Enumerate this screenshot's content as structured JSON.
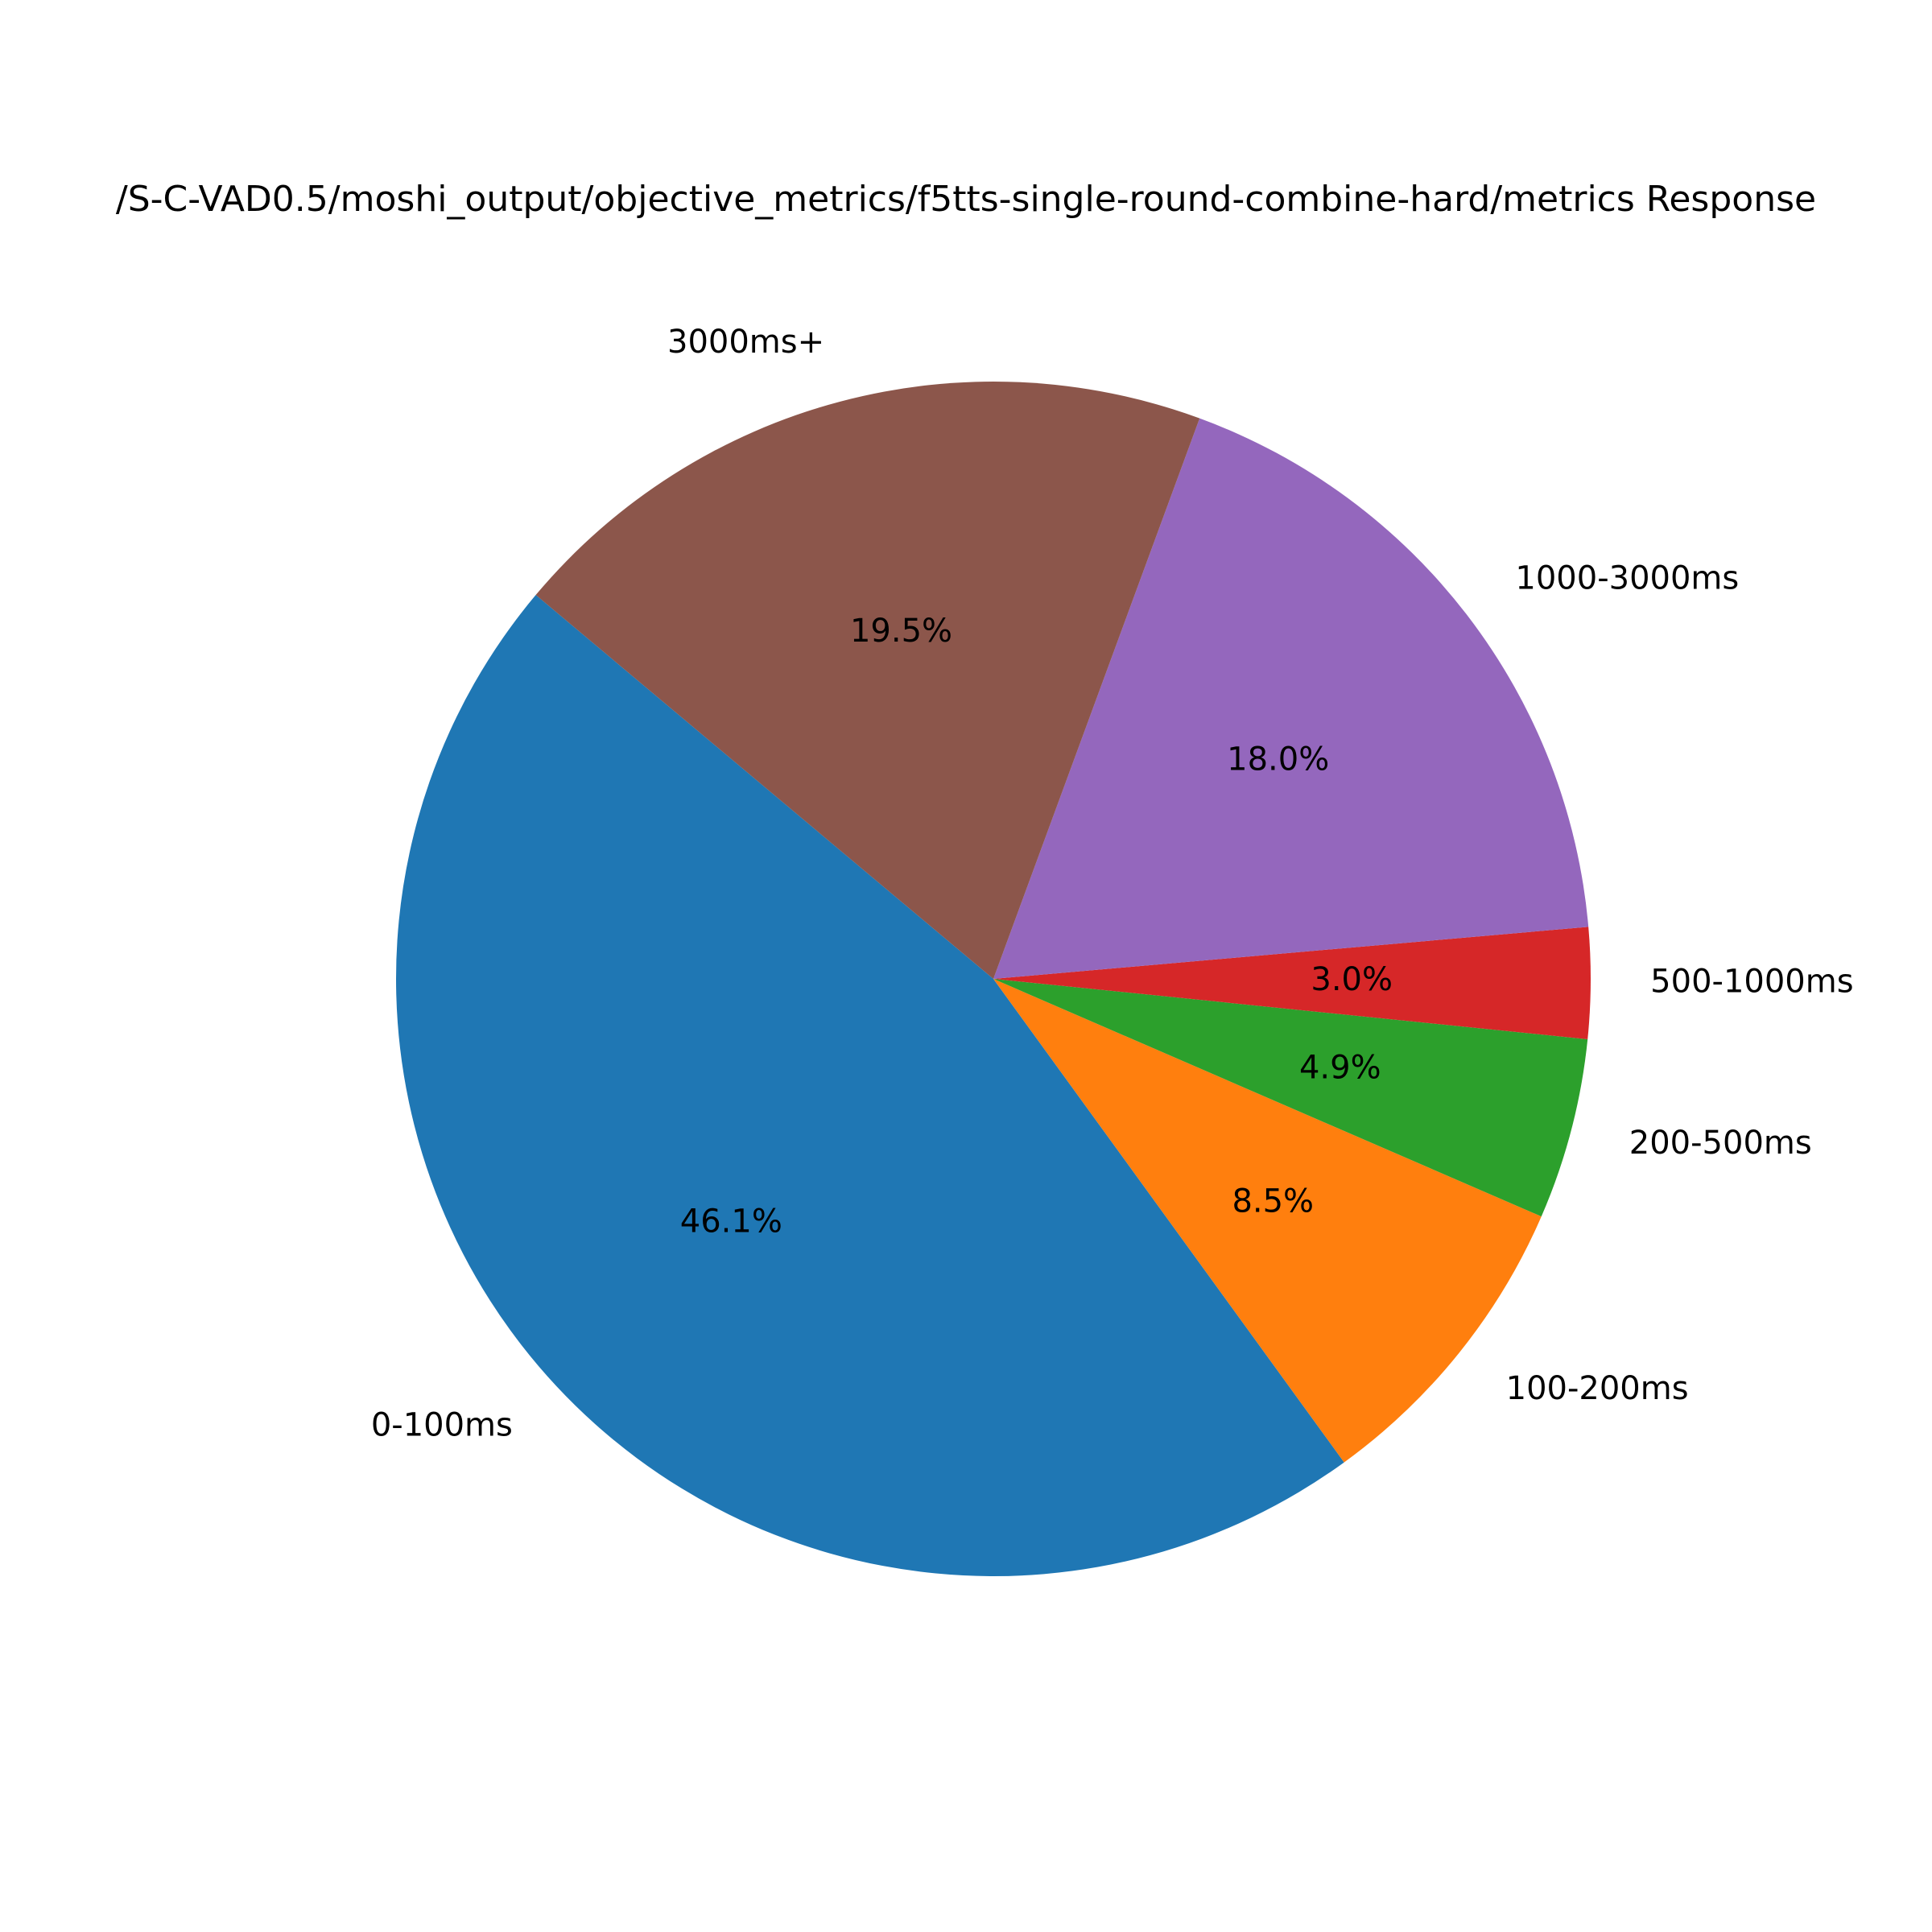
{
  "chart_data": {
    "type": "pie",
    "title": "/S-C-VAD0.5/moshi_output/objective_metrics/f5tts-single-round-combine-hard/metrics Response",
    "slices": [
      {
        "label": "0-100ms",
        "value": 46.1,
        "pct_label": "46.1%",
        "color": "#1f77b4"
      },
      {
        "label": "100-200ms",
        "value": 8.5,
        "pct_label": "8.5%",
        "color": "#ff7f0e"
      },
      {
        "label": "200-500ms",
        "value": 4.9,
        "pct_label": "4.9%",
        "color": "#2ca02c"
      },
      {
        "label": "500-1000ms",
        "value": 3.0,
        "pct_label": "3.0%",
        "color": "#d62728"
      },
      {
        "label": "1000-3000ms",
        "value": 18.0,
        "pct_label": "18.0%",
        "color": "#9467bd"
      },
      {
        "label": "3000ms+",
        "value": 19.5,
        "pct_label": "19.5%",
        "color": "#8c564b"
      }
    ],
    "start_angle_deg": 140,
    "direction": "counterclockwise"
  }
}
